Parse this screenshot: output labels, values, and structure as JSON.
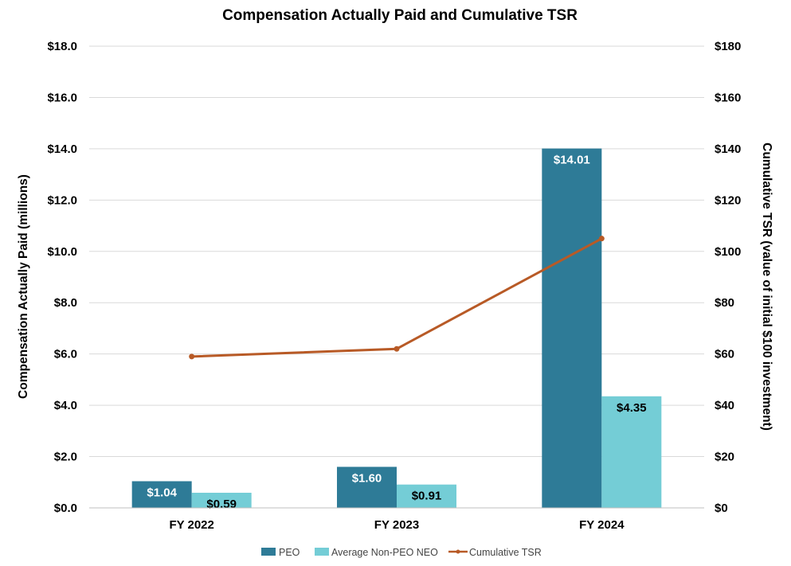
{
  "chart_data": {
    "type": "bar",
    "title": "Compensation Actually Paid and Cumulative TSR",
    "categories": [
      "FY 2022",
      "FY 2023",
      "FY 2024"
    ],
    "series": [
      {
        "name": "PEO",
        "kind": "bar",
        "axis": "left",
        "color": "#2e7b97",
        "label_color": "#ffffff",
        "values": [
          1.04,
          1.6,
          14.01
        ],
        "labels": [
          "$1.04",
          "$1.60",
          "$14.01"
        ]
      },
      {
        "name": "Average Non-PEO NEO",
        "kind": "bar",
        "axis": "left",
        "color": "#74cdd6",
        "label_color": "#000000",
        "values": [
          0.59,
          0.91,
          4.35
        ],
        "labels": [
          "$0.59",
          "$0.91",
          "$4.35"
        ]
      },
      {
        "name": "Cumulative TSR",
        "kind": "line",
        "axis": "right",
        "color": "#b85a26",
        "values": [
          59,
          62,
          105
        ]
      }
    ],
    "ylabel": "Compensation Actually Paid (millions)",
    "y2label": "Cumulative TSR (value of initial $100 investment)",
    "ylim": [
      0,
      18
    ],
    "y2lim": [
      0,
      180
    ],
    "yticks": [
      "$0.0",
      "$2.0",
      "$4.0",
      "$6.0",
      "$8.0",
      "$10.0",
      "$12.0",
      "$14.0",
      "$16.0",
      "$18.0"
    ],
    "y2ticks": [
      "$0",
      "$20",
      "$40",
      "$60",
      "$80",
      "$100",
      "$120",
      "$140",
      "$160",
      "$180"
    ],
    "grid": true,
    "legend_position": "bottom"
  }
}
